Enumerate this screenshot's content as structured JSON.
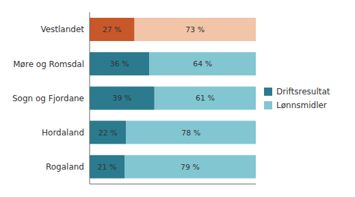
{
  "chart_data": {
    "type": "bar",
    "orientation": "horizontal",
    "stacked": true,
    "categories": [
      "Vestlandet",
      "Møre og Romsdal",
      "Sogn og Fjordane",
      "Hordaland",
      "Rogaland"
    ],
    "series": [
      {
        "name": "Driftsresultat",
        "color": "#2b7a8e",
        "colors": [
          "#c8572a",
          "#2b7a8e",
          "#2b7a8e",
          "#2b7a8e",
          "#2b7a8e"
        ],
        "values": [
          27,
          36,
          39,
          22,
          21
        ],
        "value_labels": [
          "27 %",
          "36 %",
          "39 %",
          "22 %",
          "21 %"
        ]
      },
      {
        "name": "Lønnsmidler",
        "color": "#82c6d2",
        "colors": [
          "#f2c4a8",
          "#82c6d2",
          "#82c6d2",
          "#82c6d2",
          "#82c6d2"
        ],
        "values": [
          73,
          64,
          61,
          78,
          79
        ],
        "value_labels": [
          "73 %",
          "64 %",
          "61 %",
          "78 %",
          "79 %"
        ]
      }
    ],
    "xlim": [
      0,
      100
    ],
    "data_labels": true,
    "tick_labels": "y",
    "legend": "right"
  }
}
